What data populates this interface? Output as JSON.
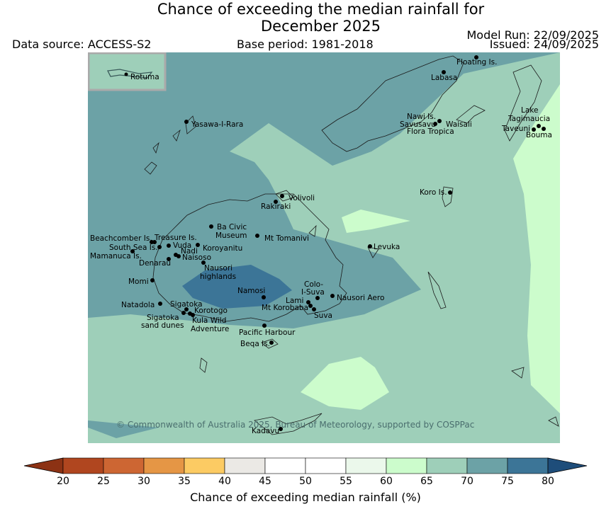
{
  "header": {
    "title_line1": "Chance of exceeding the median rainfall for",
    "title_line2": "December 2025",
    "data_source": "Data source: ACCESS-S2",
    "base_period": "Base period: 1981-2018",
    "model_run": "Model Run: 22/09/2025",
    "issued": "Issued: 24/09/2025"
  },
  "map": {
    "inset_label": "Rotuma",
    "copyright": "© Commonwealth of Australia 2025, Bureau of Meteorology, supported by COSPPac",
    "places": {
      "floating_is": "Floating Is.",
      "labasa": "Labasa",
      "nawi_is": "Nawi Is.",
      "savusavu": "Savusavu",
      "waisali": "Waisali",
      "flora_tropica": "Flora Tropica",
      "lake_tagimaucia_1": "Lake",
      "lake_tagimaucia_2": "Tagimaucia",
      "taveuni": "Taveuni",
      "bouma": "Bouma",
      "yasawa": "Yasawa-I-Rara",
      "koro_is": "Koro Is.",
      "volivoli": "Volivoli",
      "rakiraki": "Rakiraki",
      "ba_civic_1": "Ba Civic",
      "ba_civic_2": "Museum",
      "mt_tomanivi": "Mt Tomanivi",
      "beachcomber": "Beachcomber Is.",
      "treasure": "Treasure Is.",
      "south_sea": "South Sea Is.",
      "vuda": "Vuda",
      "koroyanitu": "Koroyanitu",
      "mamanuca": "Mamanuca Is.",
      "nadi": "Nadi",
      "naisoso": "Naisoso",
      "denarau": "Denarau",
      "levuka": "Levuka",
      "nausori_hl_1": "Nausori",
      "nausori_hl_2": "highlands",
      "momi": "Momi",
      "namosi": "Namosi",
      "colo_suva_1": "Colo-",
      "colo_suva_2": "I-Suva",
      "nausori_aero": "Nausori Aero",
      "natadola": "Natadola",
      "sigatoka": "Sigatoka",
      "lami": "Lami",
      "mt_korobaba": "Mt Korobaba",
      "korotogo": "Korotogo",
      "suva": "Suva",
      "sigatoka_dunes_1": "Sigatoka",
      "sigatoka_dunes_2": "sand dunes",
      "kula_1": "Kula Wild",
      "kula_2": "Adventure",
      "pacific_harbour": "Pacific Harbour",
      "beqa": "Beqa Is.",
      "kadavu": "Kadavu"
    }
  },
  "colorbar": {
    "label": "Chance of exceeding median rainfall (%)",
    "ticks": [
      "20",
      "25",
      "30",
      "35",
      "40",
      "45",
      "50",
      "55",
      "60",
      "65",
      "70",
      "75",
      "80"
    ],
    "colors": [
      "#8c3214",
      "#b0461f",
      "#cd6633",
      "#e59645",
      "#fccb63",
      "#ebe9e5",
      "#ffffff",
      "#ffffff",
      "#ebf8eb",
      "#ccfccc",
      "#9ecfb9",
      "#6ca2a6",
      "#3c7597",
      "#1e4d7a"
    ]
  }
}
